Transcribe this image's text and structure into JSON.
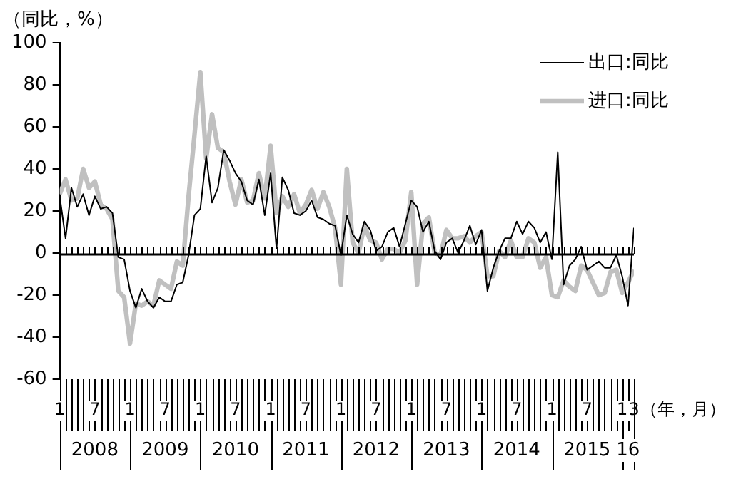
{
  "chart_data": {
    "type": "line",
    "ylabel": "（同比，%）",
    "xlabel": "（年，月）",
    "x": [
      "2008-01",
      "2008-02",
      "2008-03",
      "2008-04",
      "2008-05",
      "2008-06",
      "2008-07",
      "2008-08",
      "2008-09",
      "2008-10",
      "2008-11",
      "2008-12",
      "2009-01",
      "2009-02",
      "2009-03",
      "2009-04",
      "2009-05",
      "2009-06",
      "2009-07",
      "2009-08",
      "2009-09",
      "2009-10",
      "2009-11",
      "2009-12",
      "2010-01",
      "2010-02",
      "2010-03",
      "2010-04",
      "2010-05",
      "2010-06",
      "2010-07",
      "2010-08",
      "2010-09",
      "2010-10",
      "2010-11",
      "2010-12",
      "2011-01",
      "2011-02",
      "2011-03",
      "2011-04",
      "2011-05",
      "2011-06",
      "2011-07",
      "2011-08",
      "2011-09",
      "2011-10",
      "2011-11",
      "2011-12",
      "2012-01",
      "2012-02",
      "2012-03",
      "2012-04",
      "2012-05",
      "2012-06",
      "2012-07",
      "2012-08",
      "2012-09",
      "2012-10",
      "2012-11",
      "2012-12",
      "2013-01",
      "2013-02",
      "2013-03",
      "2013-04",
      "2013-05",
      "2013-06",
      "2013-07",
      "2013-08",
      "2013-09",
      "2013-10",
      "2013-11",
      "2013-12",
      "2014-01",
      "2014-02",
      "2014-03",
      "2014-04",
      "2014-05",
      "2014-06",
      "2014-07",
      "2014-08",
      "2014-09",
      "2014-10",
      "2014-11",
      "2014-12",
      "2015-01",
      "2015-02",
      "2015-03",
      "2015-04",
      "2015-05",
      "2015-06",
      "2015-07",
      "2015-08",
      "2015-09",
      "2015-10",
      "2015-11",
      "2015-12",
      "2016-01",
      "2016-02",
      "2016-03"
    ],
    "series": [
      {
        "name": "出口:同比",
        "color": "#000000",
        "values": [
          27,
          7,
          31,
          22,
          28,
          18,
          27,
          21,
          22,
          19,
          -2,
          -3,
          -18,
          -26,
          -17,
          -23,
          -26,
          -21,
          -23,
          -23,
          -15,
          -14,
          -1,
          18,
          21,
          46,
          24,
          31,
          49,
          44,
          38,
          34,
          25,
          23,
          35,
          18,
          38,
          2,
          36,
          30,
          19,
          18,
          20,
          25,
          17,
          16,
          14,
          13,
          -1,
          18,
          9,
          5,
          15,
          11,
          1,
          3,
          10,
          12,
          3,
          14,
          25,
          22,
          10,
          15,
          1,
          -3,
          5,
          7,
          0,
          6,
          13,
          4,
          11,
          -18,
          -7,
          1,
          7,
          7,
          15,
          9,
          15,
          12,
          5,
          10,
          -3,
          48,
          -15,
          -6,
          -3,
          3,
          -8,
          -6,
          -4,
          -7,
          -7,
          -1,
          -11,
          -25,
          12
        ]
      },
      {
        "name": "进口:同比",
        "color": "#c0c0c0",
        "values": [
          28,
          35,
          25,
          26,
          40,
          31,
          34,
          23,
          21,
          16,
          -18,
          -21,
          -43,
          -24,
          -25,
          -23,
          -25,
          -13,
          -15,
          -17,
          -4,
          -6,
          27,
          56,
          86,
          45,
          66,
          50,
          48,
          34,
          23,
          35,
          24,
          25,
          38,
          26,
          51,
          19,
          27,
          22,
          28,
          19,
          23,
          30,
          21,
          29,
          22,
          12,
          -15,
          40,
          5,
          0,
          13,
          6,
          5,
          -3,
          2,
          2,
          0,
          6,
          29,
          -15,
          14,
          17,
          0,
          -1,
          11,
          7,
          7,
          8,
          5,
          8,
          10,
          -11,
          -11,
          1,
          -2,
          6,
          -2,
          -2,
          7,
          5,
          -7,
          -2,
          -20,
          -21,
          -13,
          -16,
          -18,
          -6,
          -8,
          -14,
          -20,
          -19,
          -9,
          -8,
          -19,
          -14,
          -8
        ]
      }
    ],
    "xlim": [
      "2008-01",
      "2016-03"
    ],
    "xticks": [
      {
        "value": "2008-01",
        "label": "1"
      },
      {
        "value": "2008-02",
        "label": null
      },
      {
        "value": "2008-03",
        "label": null
      },
      {
        "value": "2008-04",
        "label": null
      },
      {
        "value": "2008-05",
        "label": null
      },
      {
        "value": "2008-06",
        "label": null
      },
      {
        "value": "2008-07",
        "label": "7"
      },
      {
        "value": "2008-08",
        "label": null
      },
      {
        "value": "2008-09",
        "label": null
      },
      {
        "value": "2008-10",
        "label": null
      },
      {
        "value": "2008-11",
        "label": null
      },
      {
        "value": "2008-12",
        "label": null
      },
      {
        "value": "2009-01",
        "label": "1"
      },
      {
        "value": "2009-02",
        "label": null
      },
      {
        "value": "2009-03",
        "label": null
      },
      {
        "value": "2009-04",
        "label": null
      },
      {
        "value": "2009-05",
        "label": null
      },
      {
        "value": "2009-06",
        "label": null
      },
      {
        "value": "2009-07",
        "label": "7"
      },
      {
        "value": "2009-08",
        "label": null
      },
      {
        "value": "2009-09",
        "label": null
      },
      {
        "value": "2009-10",
        "label": null
      },
      {
        "value": "2009-11",
        "label": null
      },
      {
        "value": "2009-12",
        "label": null
      },
      {
        "value": "2010-01",
        "label": "1"
      },
      {
        "value": "2010-02",
        "label": null
      },
      {
        "value": "2010-03",
        "label": null
      },
      {
        "value": "2010-04",
        "label": null
      },
      {
        "value": "2010-05",
        "label": null
      },
      {
        "value": "2010-06",
        "label": null
      },
      {
        "value": "2010-07",
        "label": "7"
      },
      {
        "value": "2010-08",
        "label": null
      },
      {
        "value": "2010-09",
        "label": null
      },
      {
        "value": "2010-10",
        "label": null
      },
      {
        "value": "2010-11",
        "label": null
      },
      {
        "value": "2010-12",
        "label": null
      },
      {
        "value": "2011-01",
        "label": "1"
      },
      {
        "value": "2011-02",
        "label": null
      },
      {
        "value": "2011-03",
        "label": null
      },
      {
        "value": "2011-04",
        "label": null
      },
      {
        "value": "2011-05",
        "label": null
      },
      {
        "value": "2011-06",
        "label": null
      },
      {
        "value": "2011-07",
        "label": "7"
      },
      {
        "value": "2011-08",
        "label": null
      },
      {
        "value": "2011-09",
        "label": null
      },
      {
        "value": "2011-10",
        "label": null
      },
      {
        "value": "2011-11",
        "label": null
      },
      {
        "value": "2011-12",
        "label": null
      },
      {
        "value": "2012-01",
        "label": "1"
      },
      {
        "value": "2012-02",
        "label": null
      },
      {
        "value": "2012-03",
        "label": null
      },
      {
        "value": "2012-04",
        "label": null
      },
      {
        "value": "2012-05",
        "label": null
      },
      {
        "value": "2012-06",
        "label": null
      },
      {
        "value": "2012-07",
        "label": "7"
      },
      {
        "value": "2012-08",
        "label": null
      },
      {
        "value": "2012-09",
        "label": null
      },
      {
        "value": "2012-10",
        "label": null
      },
      {
        "value": "2012-11",
        "label": null
      },
      {
        "value": "2012-12",
        "label": null
      },
      {
        "value": "2013-01",
        "label": "1"
      },
      {
        "value": "2013-02",
        "label": null
      },
      {
        "value": "2013-03",
        "label": null
      },
      {
        "value": "2013-04",
        "label": null
      },
      {
        "value": "2013-05",
        "label": null
      },
      {
        "value": "2013-06",
        "label": null
      },
      {
        "value": "2013-07",
        "label": "7"
      },
      {
        "value": "2013-08",
        "label": null
      },
      {
        "value": "2013-09",
        "label": null
      },
      {
        "value": "2013-10",
        "label": null
      },
      {
        "value": "2013-11",
        "label": null
      },
      {
        "value": "2013-12",
        "label": null
      },
      {
        "value": "2014-01",
        "label": "1"
      },
      {
        "value": "2014-02",
        "label": null
      },
      {
        "value": "2014-03",
        "label": null
      },
      {
        "value": "2014-04",
        "label": null
      },
      {
        "value": "2014-05",
        "label": null
      },
      {
        "value": "2014-06",
        "label": null
      },
      {
        "value": "2014-07",
        "label": "7"
      },
      {
        "value": "2014-08",
        "label": null
      },
      {
        "value": "2014-09",
        "label": null
      },
      {
        "value": "2014-10",
        "label": null
      },
      {
        "value": "2014-11",
        "label": null
      },
      {
        "value": "2014-12",
        "label": null
      },
      {
        "value": "2015-01",
        "label": "1"
      },
      {
        "value": "2015-02",
        "label": null
      },
      {
        "value": "2015-03",
        "label": null
      },
      {
        "value": "2015-04",
        "label": null
      },
      {
        "value": "2015-05",
        "label": null
      },
      {
        "value": "2015-06",
        "label": null
      },
      {
        "value": "2015-07",
        "label": "7"
      },
      {
        "value": "2015-08",
        "label": null
      },
      {
        "value": "2015-09",
        "label": null
      },
      {
        "value": "2015-10",
        "label": null
      },
      {
        "value": "2015-11",
        "label": null
      },
      {
        "value": "2015-12",
        "label": null
      },
      {
        "value": "2016-01",
        "label": "1"
      },
      {
        "value": "2016-02",
        "label": null
      },
      {
        "value": "2016-03",
        "label": "3"
      }
    ],
    "ylim": [
      -60,
      100
    ],
    "yticks": [
      -60,
      -40,
      -20,
      0,
      20,
      40,
      60,
      80,
      100
    ],
    "ref_lines": [
      {
        "axis": "y",
        "value": 0
      }
    ],
    "annotations": [
      {
        "text": "2008",
        "x": "2008-07"
      },
      {
        "text": "2009",
        "x": "2009-07"
      },
      {
        "text": "2010",
        "x": "2010-07"
      },
      {
        "text": "2011",
        "x": "2011-07"
      },
      {
        "text": "2012",
        "x": "2012-07"
      },
      {
        "text": "2013",
        "x": "2013-07"
      },
      {
        "text": "2014",
        "x": "2014-07"
      },
      {
        "text": "2015",
        "x": "2015-07"
      },
      {
        "text": "16",
        "x": "2016-02"
      }
    ],
    "grid": false,
    "legend": "top right",
    "marker": "none",
    "line_style": "solid"
  }
}
